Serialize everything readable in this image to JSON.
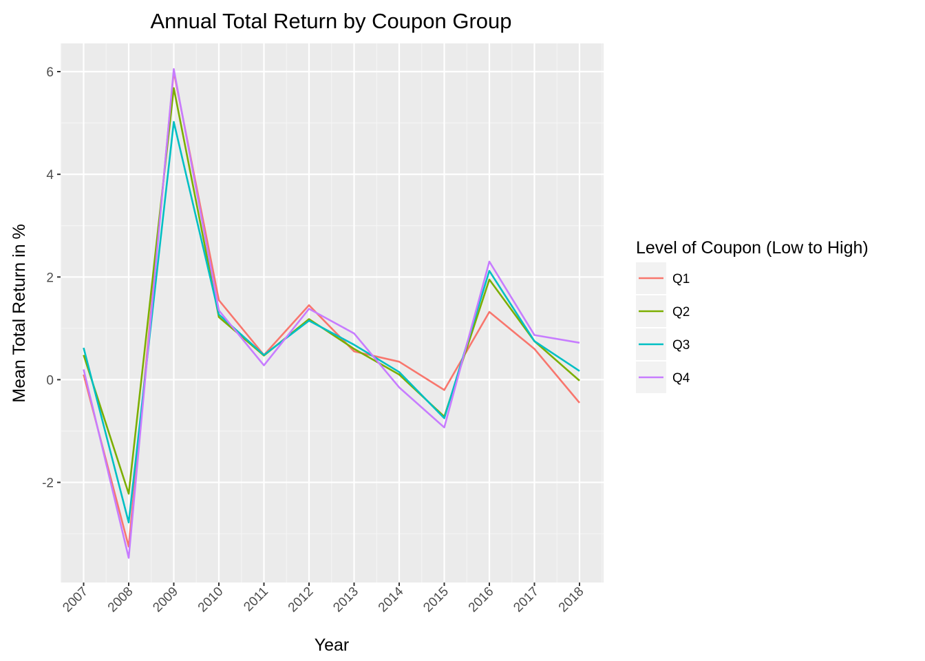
{
  "chart_data": {
    "type": "line",
    "title": "Annual Total Return by Coupon Group",
    "xlabel": "Year",
    "ylabel": "Mean Total Return in %",
    "x": [
      "2007",
      "2008",
      "2009",
      "2010",
      "2011",
      "2012",
      "2013",
      "2014",
      "2015",
      "2016",
      "2017",
      "2018"
    ],
    "yticks": [
      "-2",
      "0",
      "2",
      "4",
      "6"
    ],
    "ylim": [
      -3.95,
      6.55
    ],
    "grid": true,
    "legend": {
      "title": "Level of Coupon (Low to High)",
      "position": "right"
    },
    "series": [
      {
        "name": "Q1",
        "color": "#F8766D",
        "values": [
          0.1,
          -3.25,
          6.0,
          1.55,
          0.48,
          1.45,
          0.55,
          0.35,
          -0.2,
          1.32,
          0.6,
          -0.45
        ]
      },
      {
        "name": "Q2",
        "color": "#7CAE00",
        "values": [
          0.48,
          -2.22,
          5.68,
          1.22,
          0.47,
          1.18,
          0.6,
          0.1,
          -0.72,
          1.95,
          0.75,
          -0.02
        ]
      },
      {
        "name": "Q3",
        "color": "#00BFC4",
        "values": [
          0.62,
          -2.78,
          5.02,
          1.27,
          0.48,
          1.15,
          0.68,
          0.15,
          -0.75,
          2.12,
          0.75,
          0.17
        ]
      },
      {
        "name": "Q4",
        "color": "#C77CFF",
        "values": [
          0.2,
          -3.47,
          6.05,
          1.35,
          0.28,
          1.38,
          0.9,
          -0.15,
          -0.93,
          2.3,
          0.87,
          0.72
        ]
      }
    ]
  }
}
